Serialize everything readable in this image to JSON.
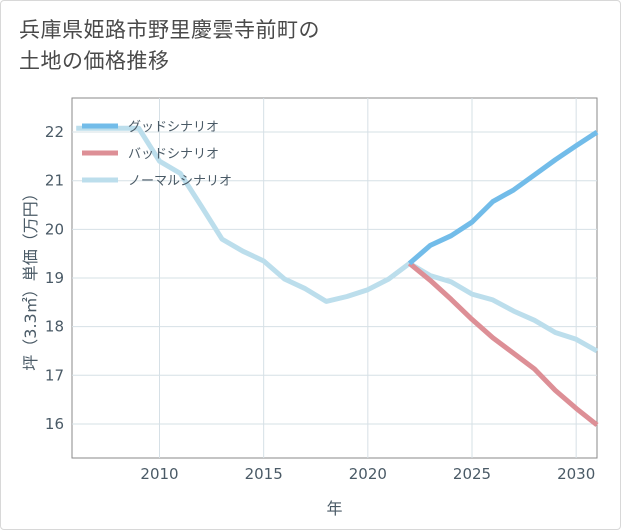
{
  "title": {
    "line1": "兵庫県姫路市野里慶雲寺前町の",
    "line2": "土地の価格推移"
  },
  "chart_data": {
    "type": "line",
    "xlabel": "年",
    "ylabel": "坪（3.3㎡）単価（万円）",
    "xlim": [
      2005.8,
      2031
    ],
    "ylim": [
      15.3,
      22.7
    ],
    "xticks": [
      2010,
      2015,
      2020,
      2025,
      2030
    ],
    "yticks": [
      16,
      17,
      18,
      19,
      20,
      21,
      22
    ],
    "grid": true,
    "legend_position": "top-left",
    "series": [
      {
        "name": "グッドシナリオ",
        "color": "#72bce9",
        "x": [
          2022,
          2023,
          2024,
          2025,
          2026,
          2027,
          2028,
          2029,
          2030,
          2031
        ],
        "y": [
          19.3,
          19.67,
          19.87,
          20.15,
          20.57,
          20.81,
          21.12,
          21.43,
          21.72,
          22.0
        ]
      },
      {
        "name": "バッドシナリオ",
        "color": "#dd8f96",
        "x": [
          2022,
          2023,
          2024,
          2025,
          2026,
          2027,
          2028,
          2029,
          2030,
          2031
        ],
        "y": [
          19.3,
          18.95,
          18.56,
          18.15,
          17.77,
          17.45,
          17.13,
          16.69,
          16.32,
          15.98
        ]
      },
      {
        "name": "ノーマルシナリオ",
        "color": "#bcdeec",
        "x": [
          2006,
          2007,
          2008,
          2009,
          2010,
          2011,
          2012,
          2013,
          2014,
          2015,
          2016,
          2017,
          2018,
          2019,
          2020,
          2021,
          2022,
          2023,
          2024,
          2025,
          2026,
          2027,
          2028,
          2029,
          2030,
          2031
        ],
        "y": [
          22.08,
          22.08,
          22.08,
          22.08,
          21.4,
          21.15,
          20.48,
          19.8,
          19.55,
          19.35,
          18.98,
          18.78,
          18.52,
          18.62,
          18.76,
          18.98,
          19.3,
          19.05,
          18.92,
          18.67,
          18.55,
          18.32,
          18.13,
          17.88,
          17.74,
          17.5
        ]
      }
    ]
  }
}
